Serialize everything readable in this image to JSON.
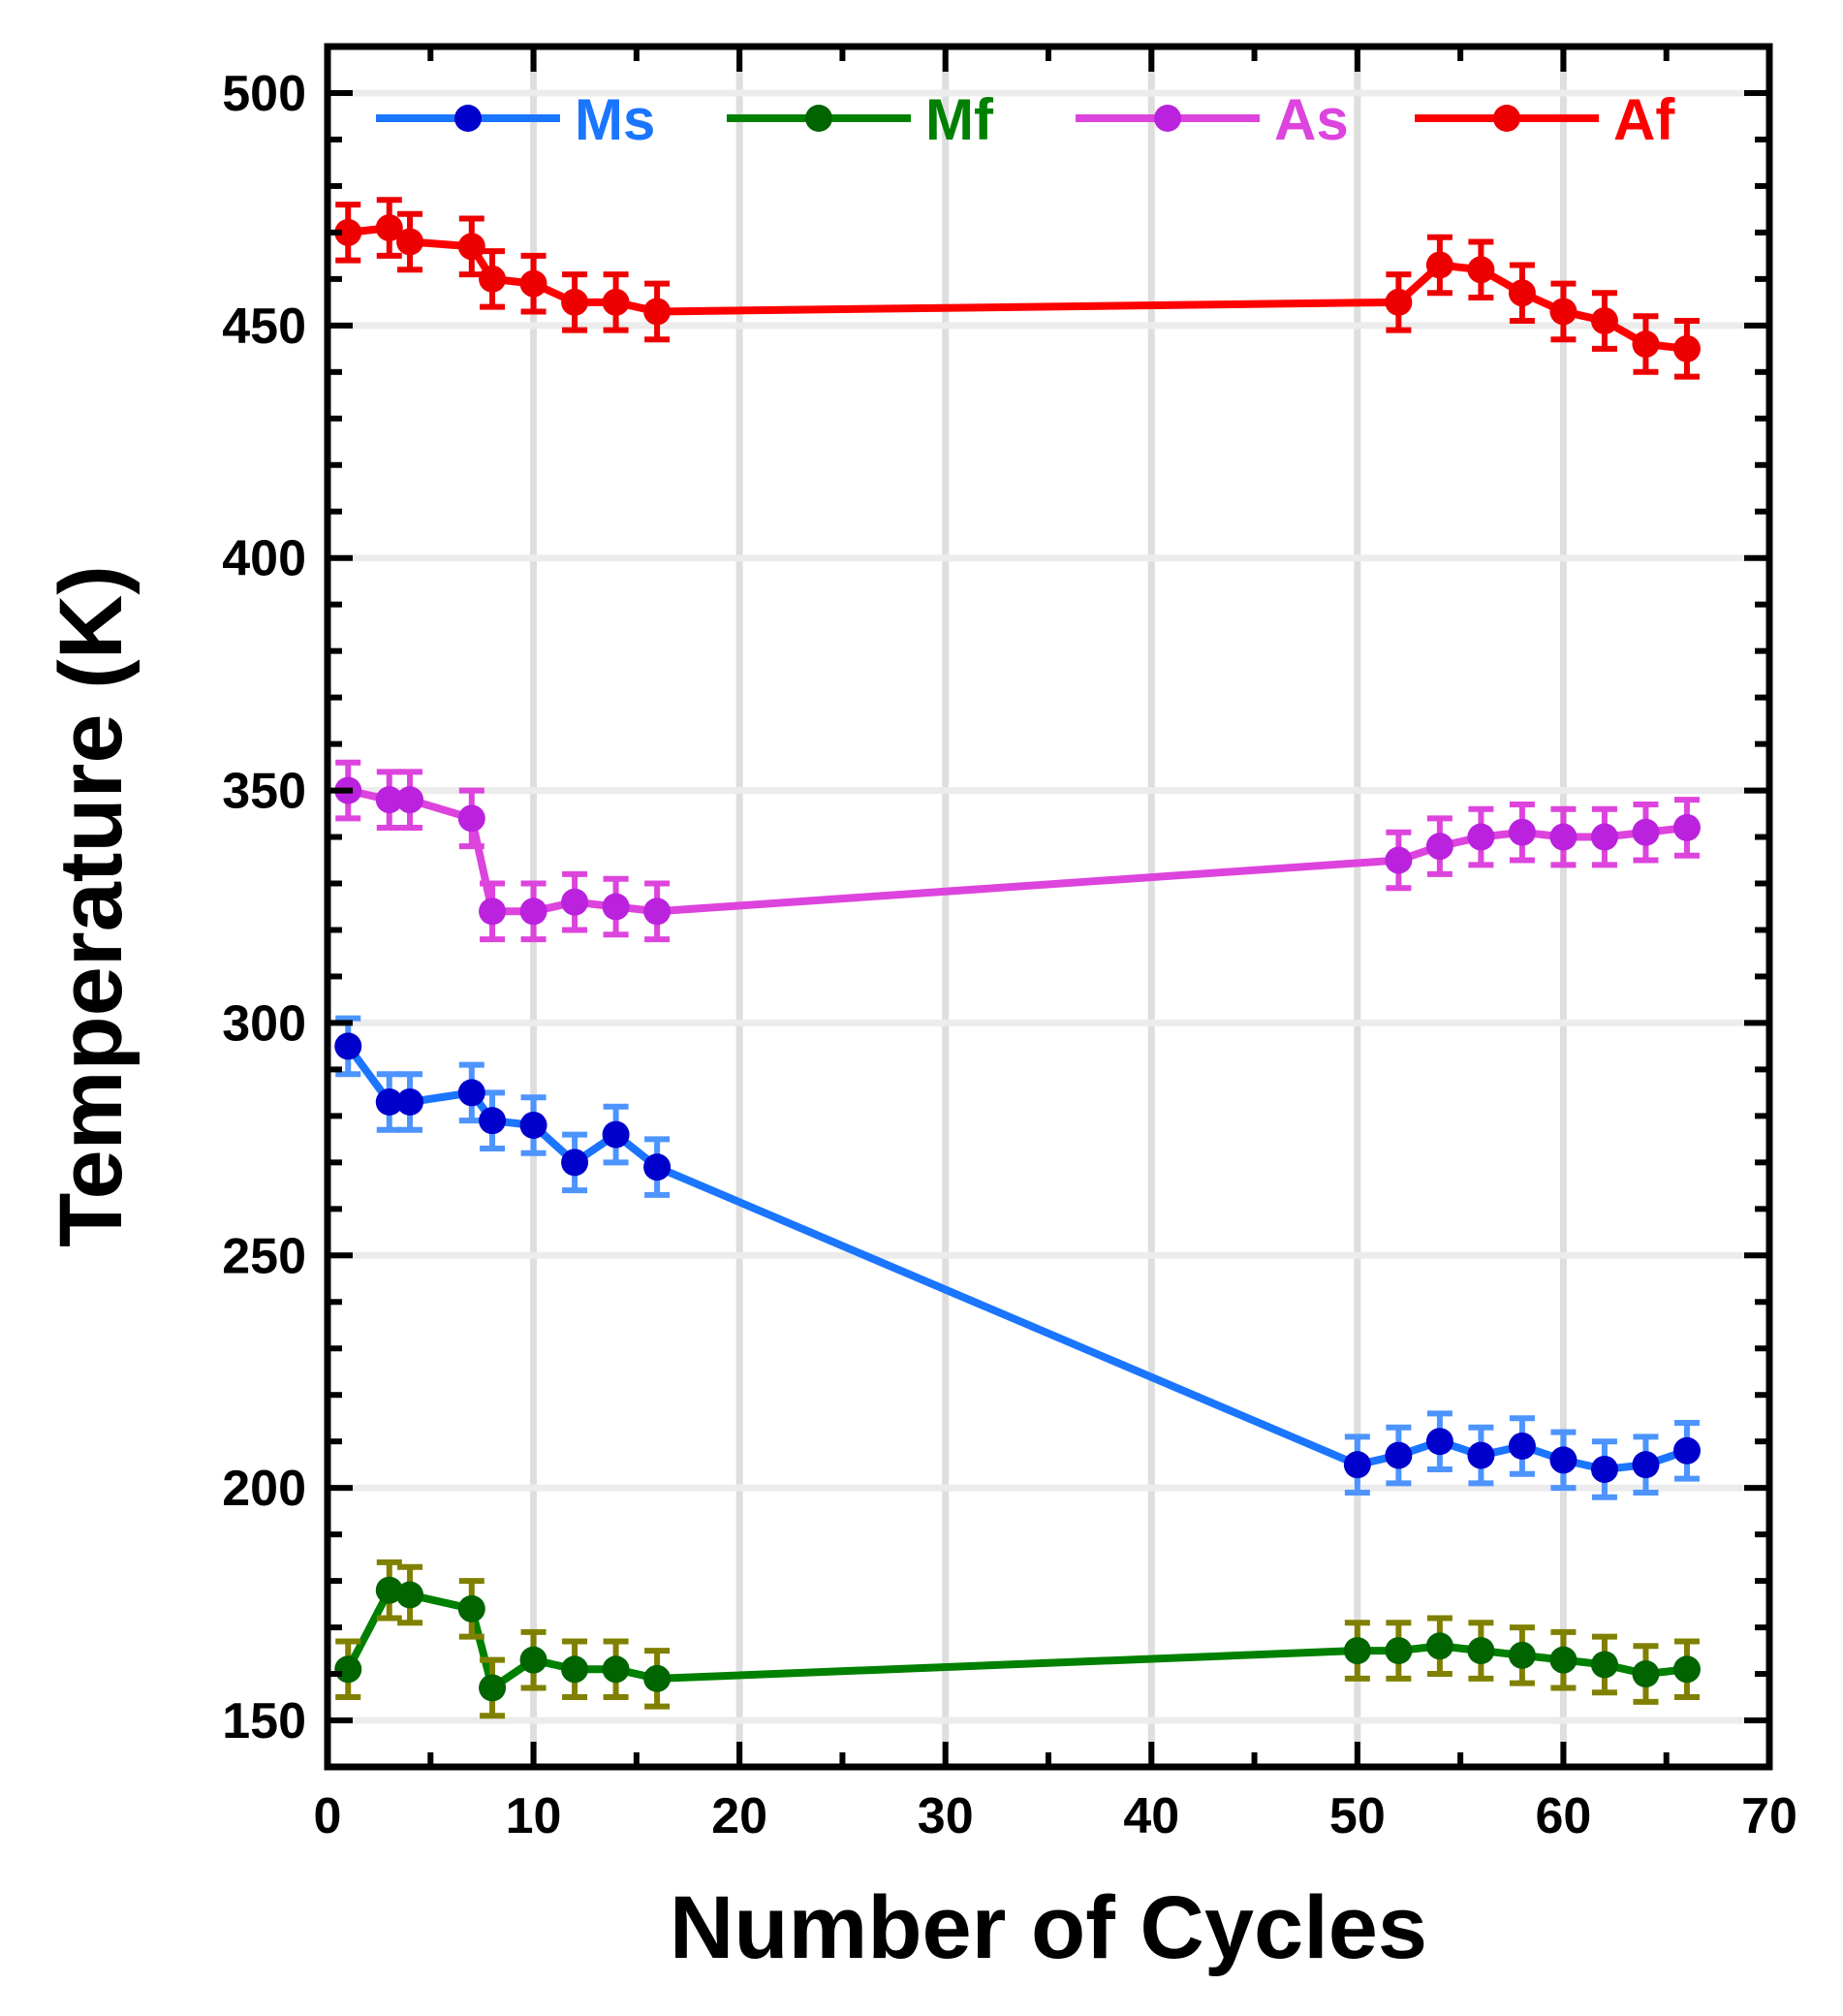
{
  "chart_data": {
    "type": "line",
    "title": "",
    "xlabel": "Number of Cycles",
    "ylabel": "Temperature (K)",
    "xlim": [
      0,
      70
    ],
    "ylim": [
      140,
      510
    ],
    "x_ticks": [
      0,
      10,
      20,
      30,
      40,
      50,
      60,
      70
    ],
    "y_ticks": [
      150,
      200,
      250,
      300,
      350,
      400,
      450,
      500
    ],
    "x_tick_labels": [
      "0",
      "10",
      "20",
      "30",
      "40",
      "50",
      "60",
      "70"
    ],
    "y_tick_labels": [
      "150",
      "200",
      "250",
      "300",
      "350",
      "400",
      "450",
      "500"
    ],
    "grid": true,
    "legend_position": "top",
    "series": [
      {
        "name": "Ms",
        "line_color": "#1a75ff",
        "marker_color": "#0000cc",
        "errorbar_color": "#4d94ff",
        "x": [
          1,
          3,
          4,
          7,
          8,
          10,
          12,
          14,
          16,
          50,
          52,
          54,
          56,
          58,
          60,
          62,
          64,
          66
        ],
        "y": [
          295,
          283,
          283,
          285,
          279,
          278,
          270,
          276,
          269,
          205,
          207,
          210,
          207,
          209,
          206,
          204,
          205,
          208
        ],
        "error": [
          6,
          6,
          6,
          6,
          6,
          6,
          6,
          6,
          6,
          6,
          6,
          6,
          6,
          6,
          6,
          6,
          6,
          6
        ]
      },
      {
        "name": "Mf",
        "line_color": "#008000",
        "marker_color": "#006400",
        "errorbar_color": "#808000",
        "x": [
          1,
          3,
          4,
          7,
          8,
          10,
          12,
          14,
          16,
          50,
          52,
          54,
          56,
          58,
          60,
          62,
          64,
          66
        ],
        "y": [
          161,
          178,
          177,
          174,
          157,
          163,
          161,
          161,
          159,
          165,
          165,
          166,
          165,
          164,
          163,
          162,
          160,
          161
        ],
        "error": [
          6,
          6,
          6,
          6,
          6,
          6,
          6,
          6,
          6,
          6,
          6,
          6,
          6,
          6,
          6,
          6,
          6,
          6
        ]
      },
      {
        "name": "As",
        "line_color": "#dd44dd",
        "marker_color": "#bb22dd",
        "errorbar_color": "#dd44dd",
        "x": [
          1,
          3,
          4,
          7,
          8,
          10,
          12,
          14,
          16,
          52,
          54,
          56,
          58,
          60,
          62,
          64,
          66
        ],
        "y": [
          350,
          348,
          348,
          344,
          324,
          324,
          326,
          325,
          324,
          335,
          338,
          340,
          341,
          340,
          340,
          341,
          342
        ],
        "error": [
          6,
          6,
          6,
          6,
          6,
          6,
          6,
          6,
          6,
          6,
          6,
          6,
          6,
          6,
          6,
          6,
          6
        ]
      },
      {
        "name": "Af",
        "line_color": "#ff0000",
        "marker_color": "#ee0000",
        "errorbar_color": "#ee0000",
        "x": [
          1,
          3,
          4,
          7,
          8,
          10,
          12,
          14,
          16,
          52,
          54,
          56,
          58,
          60,
          62,
          64,
          66
        ],
        "y": [
          470,
          471,
          468,
          467,
          460,
          459,
          455,
          455,
          453,
          455,
          463,
          462,
          457,
          453,
          451,
          446,
          445
        ],
        "error": [
          6,
          6,
          6,
          6,
          6,
          6,
          6,
          6,
          6,
          6,
          6,
          6,
          6,
          6,
          6,
          6,
          6
        ]
      }
    ]
  }
}
